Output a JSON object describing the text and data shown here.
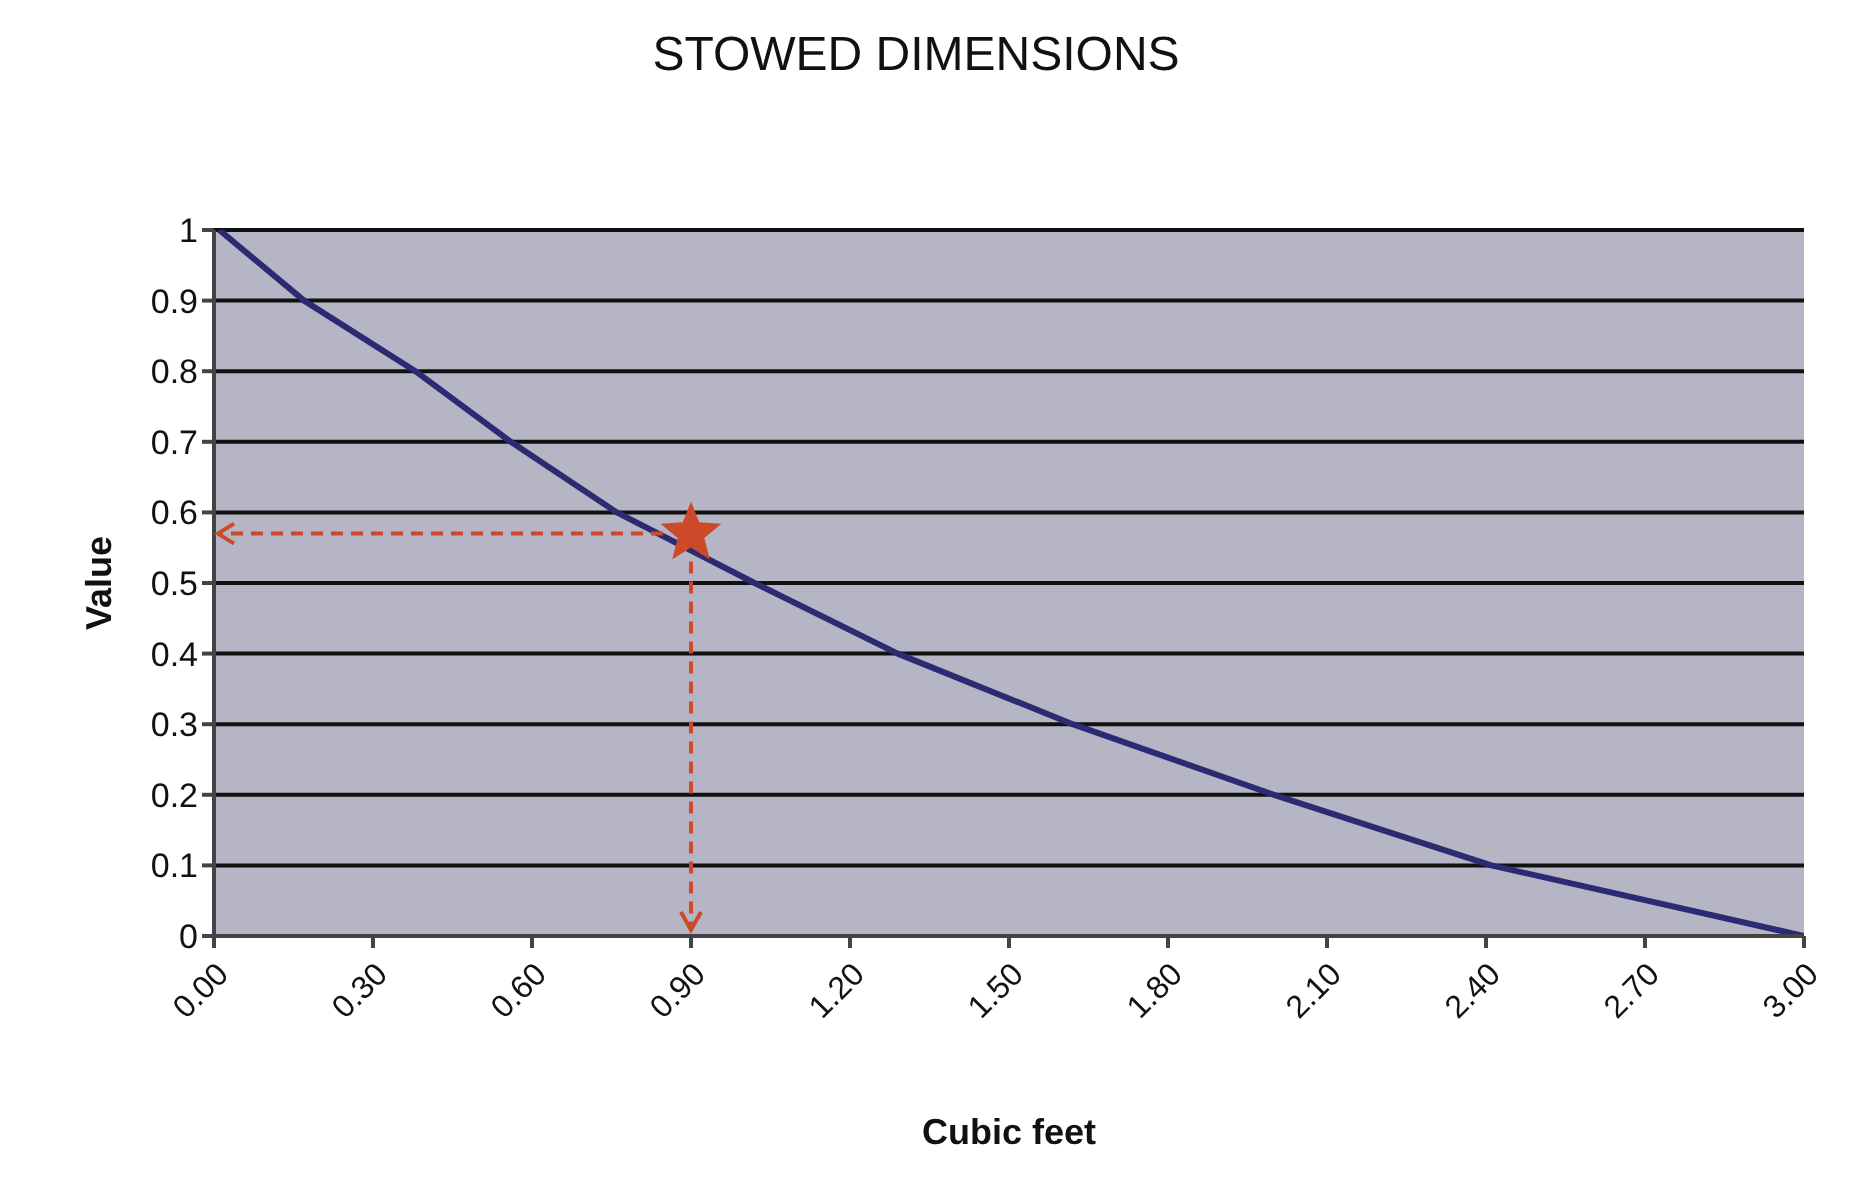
{
  "chart_data": {
    "type": "line",
    "title": "STOWED DIMENSIONS",
    "xlabel": "Cubic feet",
    "ylabel": "Value",
    "xlim": [
      0,
      3
    ],
    "ylim": [
      0,
      1
    ],
    "xticks": [
      {
        "value": 0,
        "label": "0.00"
      },
      {
        "value": 0.3,
        "label": "0.30"
      },
      {
        "value": 0.6,
        "label": "0.60"
      },
      {
        "value": 0.9,
        "label": "0.90"
      },
      {
        "value": 1.2,
        "label": "1.20"
      },
      {
        "value": 1.5,
        "label": "1.50"
      },
      {
        "value": 1.8,
        "label": "1.80"
      },
      {
        "value": 2.1,
        "label": "2.10"
      },
      {
        "value": 2.4,
        "label": "2.40"
      },
      {
        "value": 2.7,
        "label": "2.70"
      },
      {
        "value": 3,
        "label": "3.00"
      }
    ],
    "yticks": [
      0,
      0.1,
      0.2,
      0.3,
      0.4,
      0.5,
      0.6,
      0.7,
      0.8,
      0.9,
      1
    ],
    "grid": "y",
    "series": [
      {
        "color": "#2b2a72",
        "marker": "none",
        "x": [
          0.01,
          0.17,
          0.38,
          0.56,
          0.76,
          1.02,
          1.29,
          1.62,
          2.0,
          2.41,
          3.0
        ],
        "values": [
          1,
          0.9,
          0.8,
          0.7,
          0.6,
          0.5,
          0.4,
          0.3,
          0.2,
          0.1,
          0
        ]
      },
      {
        "type": "scatter",
        "color": "#cc4a2a",
        "marker": "star",
        "x": [
          0.9
        ],
        "values": [
          0.57
        ]
      }
    ]
  }
}
